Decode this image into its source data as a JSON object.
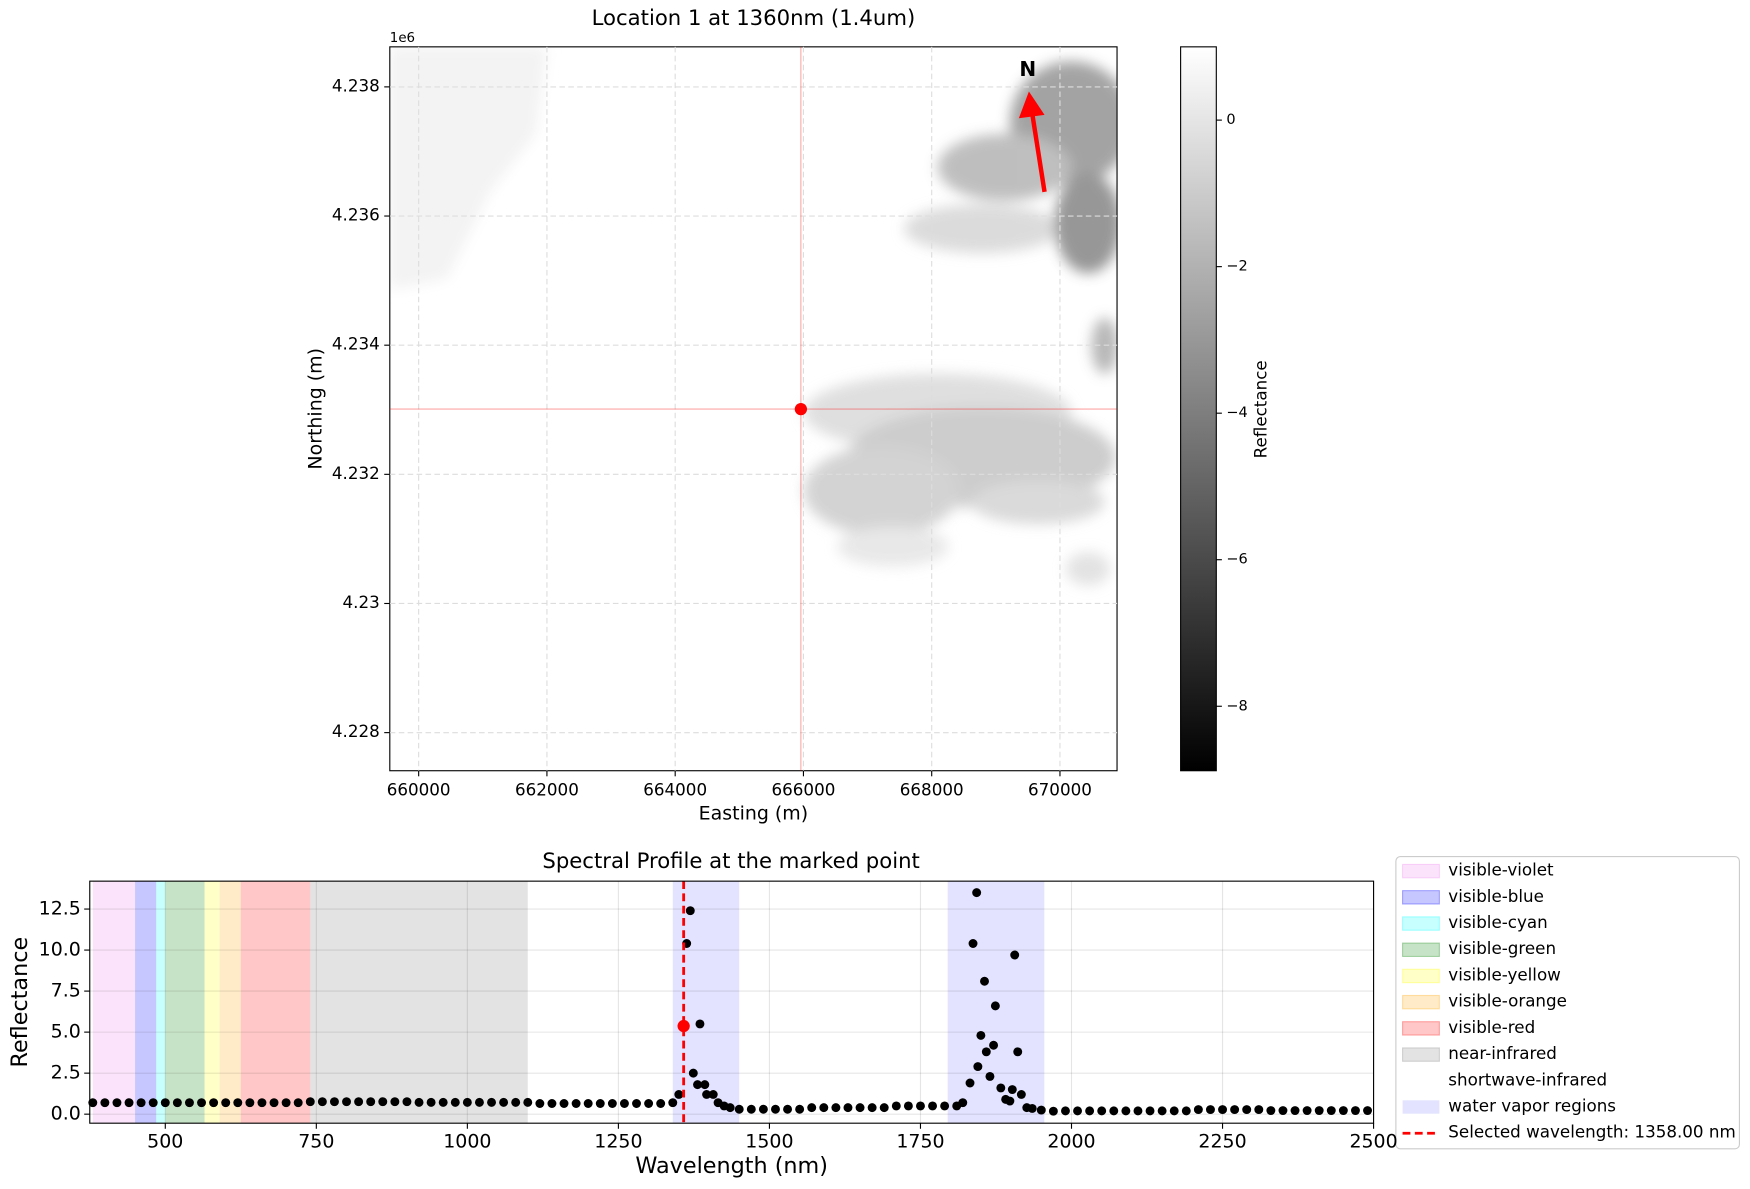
{
  "chart_data": [
    {
      "type": "image",
      "title": "Location 1 at 1360nm (1.4um)",
      "xlabel": "Easting (m)",
      "ylabel": "Northing (m)",
      "xlim": [
        659550,
        670890
      ],
      "xticks": [
        660000,
        662000,
        664000,
        666000,
        668000,
        670000
      ],
      "ylim": [
        4.22741,
        4.23862
      ],
      "yticks": [
        4.228,
        4.23,
        4.232,
        4.234,
        4.236,
        4.238
      ],
      "y_offset": "1e6",
      "grid": true,
      "marker": {
        "x": 665960,
        "y": 4.23301,
        "color": "#ff0000"
      },
      "annotation": "N",
      "colorbar": {
        "label": "Reflectance",
        "cmap": "gray",
        "lim": [
          -8.88,
          1.0
        ],
        "ticks": [
          0,
          {
            "value": -2,
            "label": "−2"
          },
          {
            "value": -4,
            "label": "−4"
          },
          {
            "value": -6,
            "label": "−6"
          },
          {
            "value": -8,
            "label": "−8"
          }
        ]
      }
    },
    {
      "type": "scatter",
      "title": "Spectral Profile at the marked point",
      "xlabel": "Wavelength (nm)",
      "ylabel": "Reflectance",
      "xlim": [
        375,
        2500
      ],
      "xticks": [
        500,
        750,
        1000,
        1250,
        1500,
        1750,
        2000,
        2250,
        2500
      ],
      "ylim": [
        -0.55,
        14.2
      ],
      "yticks": [
        {
          "value": 0,
          "label": "0.0"
        },
        2.5,
        {
          "value": 5,
          "label": "5.0"
        },
        7.5,
        {
          "value": 10,
          "label": "10.0"
        },
        12.5
      ],
      "grid": true,
      "legend": "outside right",
      "regions": [
        {
          "name": "visible-violet",
          "color": "#ee82ee",
          "range": [
            380,
            450
          ]
        },
        {
          "name": "visible-blue",
          "color": "#0000ff",
          "range": [
            450,
            485
          ]
        },
        {
          "name": "visible-cyan",
          "color": "#00ffff",
          "range": [
            485,
            500
          ]
        },
        {
          "name": "visible-green",
          "color": "#008000",
          "range": [
            500,
            565
          ]
        },
        {
          "name": "visible-yellow",
          "color": "#ffff00",
          "range": [
            565,
            590
          ]
        },
        {
          "name": "visible-orange",
          "color": "#ffa500",
          "range": [
            590,
            625
          ]
        },
        {
          "name": "visible-red",
          "color": "#ff0000",
          "range": [
            625,
            740
          ]
        },
        {
          "name": "near-infrared",
          "color": "#808080",
          "range": [
            740,
            1100
          ]
        },
        {
          "name": "shortwave-infrared",
          "color": "#ffffff",
          "range": [
            1100,
            2500
          ]
        }
      ],
      "region_alpha": 0.22,
      "water_vapor": {
        "name": "water vapor regions",
        "color": "#0000ff",
        "alpha": 0.11,
        "ranges": [
          [
            1340,
            1450
          ],
          [
            1795,
            1955
          ]
        ]
      },
      "series": [
        {
          "color": "#000000",
          "x": [
            380,
            400,
            420,
            440,
            460,
            480,
            500,
            520,
            540,
            560,
            580,
            600,
            620,
            640,
            660,
            680,
            700,
            720,
            740,
            760,
            780,
            800,
            820,
            840,
            860,
            880,
            900,
            920,
            940,
            960,
            980,
            1000,
            1020,
            1040,
            1060,
            1080,
            1100,
            1120,
            1140,
            1160,
            1180,
            1200,
            1220,
            1240,
            1260,
            1280,
            1300,
            1320,
            1340,
            1350,
            1363,
            1369,
            1374,
            1381,
            1385,
            1393,
            1396,
            1407,
            1415,
            1425,
            1435,
            1450,
            1470,
            1490,
            1510,
            1530,
            1550,
            1570,
            1590,
            1610,
            1630,
            1650,
            1670,
            1690,
            1710,
            1730,
            1750,
            1770,
            1790,
            1810,
            1820,
            1832,
            1837,
            1843,
            1845,
            1850,
            1856,
            1859,
            1865,
            1871,
            1874,
            1883,
            1891,
            1898,
            1902,
            1906,
            1911,
            1917,
            1926,
            1935,
            1950,
            1970,
            1990,
            2010,
            2030,
            2050,
            2070,
            2090,
            2110,
            2130,
            2150,
            2170,
            2190,
            2210,
            2230,
            2250,
            2270,
            2290,
            2310,
            2330,
            2350,
            2370,
            2390,
            2410,
            2430,
            2450,
            2470,
            2490
          ],
          "values": [
            0.7,
            0.7,
            0.7,
            0.7,
            0.7,
            0.7,
            0.7,
            0.7,
            0.7,
            0.7,
            0.7,
            0.7,
            0.7,
            0.7,
            0.7,
            0.7,
            0.7,
            0.7,
            0.76,
            0.76,
            0.76,
            0.76,
            0.76,
            0.76,
            0.76,
            0.76,
            0.76,
            0.72,
            0.72,
            0.72,
            0.72,
            0.72,
            0.72,
            0.72,
            0.72,
            0.72,
            0.72,
            0.65,
            0.65,
            0.65,
            0.65,
            0.65,
            0.65,
            0.65,
            0.65,
            0.65,
            0.65,
            0.65,
            0.7,
            1.2,
            10.4,
            12.4,
            2.5,
            1.8,
            5.5,
            1.8,
            1.2,
            1.2,
            0.7,
            0.5,
            0.4,
            0.3,
            0.3,
            0.3,
            0.3,
            0.3,
            0.3,
            0.4,
            0.4,
            0.4,
            0.4,
            0.4,
            0.4,
            0.4,
            0.5,
            0.5,
            0.5,
            0.5,
            0.5,
            0.5,
            0.7,
            1.9,
            10.4,
            13.5,
            2.9,
            4.8,
            8.1,
            3.8,
            2.3,
            4.2,
            6.6,
            1.6,
            0.9,
            0.8,
            1.5,
            9.7,
            3.8,
            1.2,
            0.4,
            0.35,
            0.25,
            0.18,
            0.2,
            0.2,
            0.2,
            0.2,
            0.2,
            0.2,
            0.2,
            0.2,
            0.2,
            0.2,
            0.2,
            0.28,
            0.28,
            0.28,
            0.28,
            0.28,
            0.28,
            0.22,
            0.22,
            0.22,
            0.22,
            0.22,
            0.22,
            0.22,
            0.22,
            0.22
          ]
        }
      ],
      "selected": {
        "name": "Selected wavelength: 1358.00 nm",
        "x": 1358,
        "value": 5.37,
        "color": "#ff0000"
      }
    }
  ]
}
